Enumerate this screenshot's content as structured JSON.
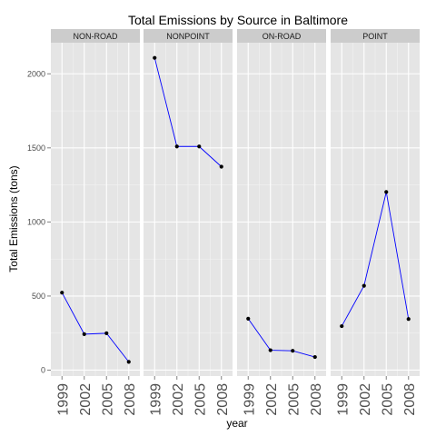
{
  "chart_data": {
    "type": "line",
    "title": "Total Emissions by Source in Baltimore",
    "xlabel": "year",
    "ylabel": "Total Emissions (tons)",
    "x": [
      1999,
      2002,
      2005,
      2008
    ],
    "x_tick_labels": [
      "1999",
      "2002",
      "2005",
      "2008"
    ],
    "ylim": [
      -40,
      2210
    ],
    "y_ticks": [
      0,
      500,
      1000,
      1500,
      2000
    ],
    "y_tick_labels": [
      "0",
      "500",
      "1000",
      "1500",
      "2000"
    ],
    "grid": true,
    "facets": [
      {
        "name": "NON-ROAD",
        "values": [
          522.94,
          242.85,
          248.93,
          55.82
        ]
      },
      {
        "name": "NONPOINT",
        "values": [
          2107.63,
          1509.5,
          1509.5,
          1373.21
        ]
      },
      {
        "name": "ON-ROAD",
        "values": [
          346.82,
          134.31,
          130.43,
          88.28
        ]
      },
      {
        "name": "POINT",
        "values": [
          296.8,
          569.26,
          1202.49,
          344.98
        ]
      }
    ],
    "colors": {
      "panel_bg": "#e5e5e5",
      "strip_bg": "#cccccc",
      "grid": "#ffffff",
      "line": "#0000ff",
      "point": "#000000"
    }
  }
}
